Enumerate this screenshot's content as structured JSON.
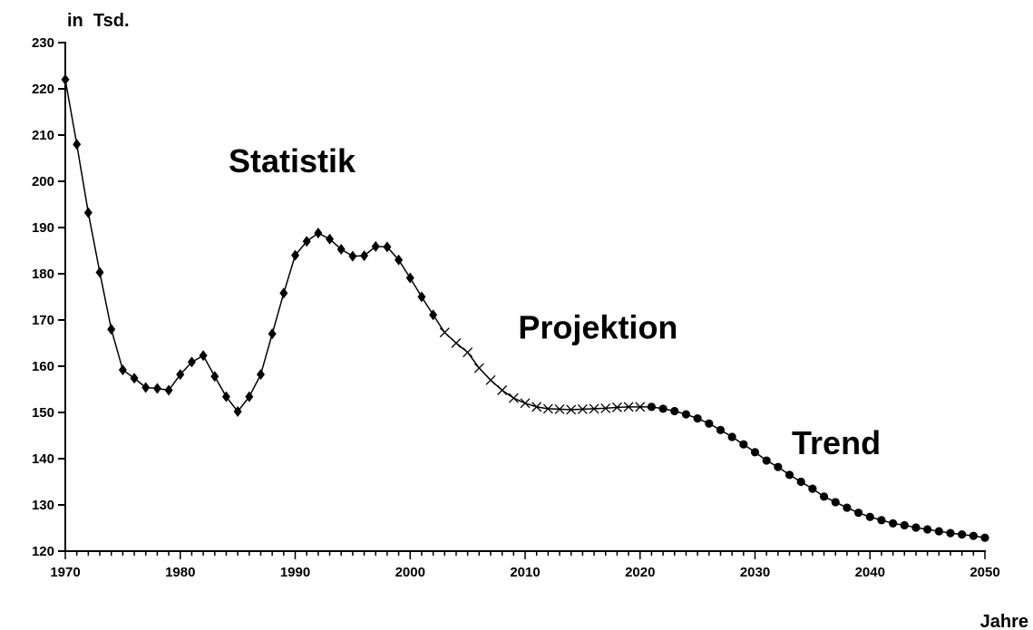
{
  "chart_data": {
    "type": "line",
    "y_unit_label": "in  Tsd.",
    "xlabel": "Jahre",
    "xlim": [
      1970,
      2050
    ],
    "ylim": [
      120,
      230
    ],
    "x_ticks": [
      1970,
      1980,
      1990,
      2000,
      2010,
      2020,
      2030,
      2040,
      2050
    ],
    "y_ticks": [
      120,
      130,
      140,
      150,
      160,
      170,
      180,
      190,
      200,
      210,
      220,
      230
    ],
    "grid": false,
    "legend": "none",
    "annotations": [
      {
        "text": "Statistik",
        "x": 1984.2,
        "y": 202
      },
      {
        "text": "Projektion",
        "x": 2009.4,
        "y": 166
      },
      {
        "text": "Trend",
        "x": 2033.2,
        "y": 141
      }
    ],
    "series": [
      {
        "marker": "diamond",
        "x": [
          1970,
          1971,
          1972,
          1973,
          1974,
          1975,
          1976,
          1977,
          1978,
          1979,
          1980,
          1981,
          1982,
          1983,
          1984,
          1985,
          1986,
          1987,
          1988,
          1989,
          1990,
          1991,
          1992,
          1993,
          1994,
          1995,
          1996,
          1997,
          1998,
          1999,
          2000,
          2001,
          2002
        ],
        "y": [
          222,
          208,
          193.2,
          180.3,
          168,
          159.2,
          157.4,
          155.4,
          155.2,
          154.8,
          158.2,
          160.9,
          162.3,
          157.8,
          153.4,
          150.2,
          153.4,
          158.2,
          167,
          175.8,
          184,
          187,
          188.8,
          187.5,
          185.3,
          183.8,
          183.9,
          185.9,
          185.8,
          183,
          179.1,
          175,
          171.1
        ]
      },
      {
        "marker": "cross",
        "x": [
          2003,
          2004,
          2005,
          2006,
          2007,
          2008,
          2009,
          2010,
          2011,
          2012,
          2013,
          2014,
          2015,
          2016,
          2017,
          2018,
          2019,
          2020
        ],
        "y": [
          167.3,
          165,
          163,
          159.6,
          157,
          154.8,
          153.1,
          152,
          151.2,
          150.8,
          150.7,
          150.6,
          150.7,
          150.8,
          150.9,
          151.1,
          151.2,
          151.2
        ]
      },
      {
        "marker": "circle",
        "x": [
          2021,
          2022,
          2023,
          2024,
          2025,
          2026,
          2027,
          2028,
          2029,
          2030,
          2031,
          2032,
          2033,
          2034,
          2035,
          2036,
          2037,
          2038,
          2039,
          2040,
          2041,
          2042,
          2043,
          2044,
          2045,
          2046,
          2047,
          2048,
          2049,
          2050
        ],
        "y": [
          151.2,
          150.8,
          150.3,
          149.6,
          148.7,
          147.6,
          146.2,
          144.7,
          143.1,
          141.4,
          139.6,
          138.2,
          136.5,
          135,
          133.5,
          131.8,
          130.6,
          129.4,
          128.3,
          127.4,
          126.7,
          126,
          125.6,
          125.1,
          124.7,
          124.3,
          123.9,
          123.6,
          123.3,
          122.9
        ]
      }
    ]
  }
}
